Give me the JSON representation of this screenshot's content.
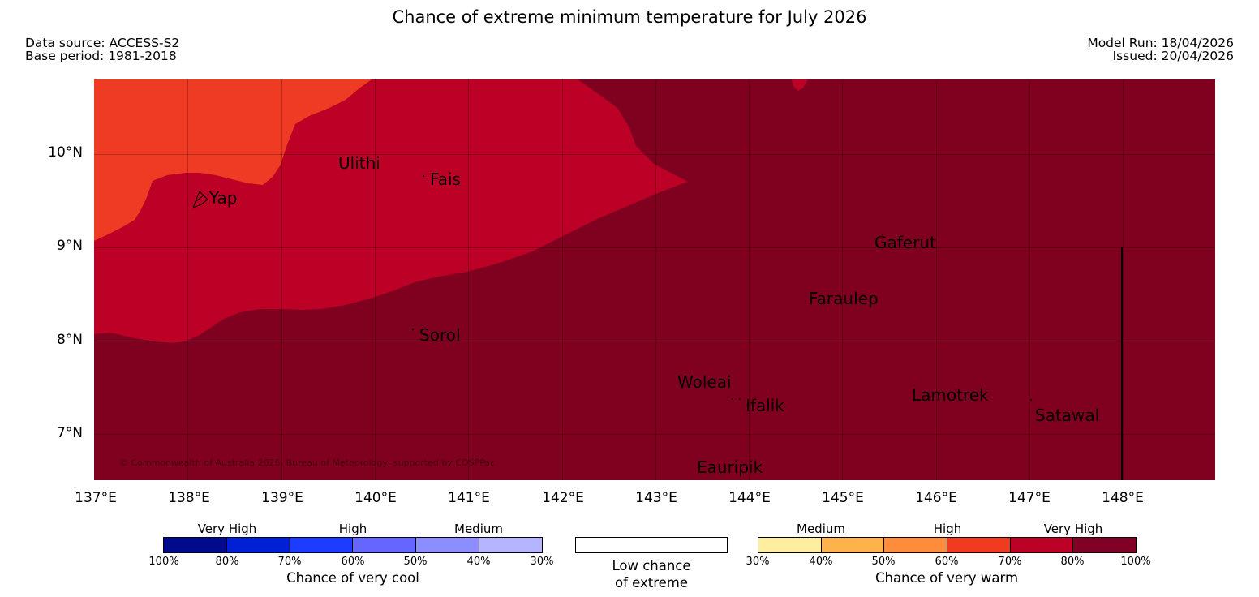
{
  "title": "Chance of extreme minimum temperature for July 2026",
  "meta": {
    "data_source": "Data source: ACCESS-S2",
    "base_period": "Base period: 1981-2018",
    "model_run": "Model Run: 18/04/2026",
    "issued": "Issued: 20/04/2026"
  },
  "map": {
    "copyright": "© Commonwealth of Australia 2026, Bureau of Meteorology, supported by COSPPac",
    "lat_labels": [
      "10°N",
      "9°N",
      "8°N",
      "7°N"
    ],
    "lon_labels": [
      "137°E",
      "138°E",
      "139°E",
      "140°E",
      "141°E",
      "142°E",
      "143°E",
      "144°E",
      "145°E",
      "146°E",
      "147°E",
      "148°E"
    ],
    "places": [
      "Yap",
      "Ulithi",
      "Fais",
      "Gaferut",
      "Faraulep",
      "Sorol",
      "Woleai",
      "Ifalik",
      "Lamotrek",
      "Satawal",
      "Eauripik"
    ],
    "colors": {
      "very_high_warm": "#800020",
      "high_warm": "#bd0026",
      "medium_high_warm": "#f03b24"
    }
  },
  "legend": {
    "cool": {
      "categories": [
        "Very High",
        "High",
        "Medium"
      ],
      "ticks": [
        "100%",
        "80%",
        "70%",
        "60%",
        "50%",
        "40%",
        "30%"
      ],
      "caption": "Chance of very cool",
      "colors": [
        "#000a8c",
        "#0020d6",
        "#1c3cff",
        "#6466ff",
        "#8c8eff",
        "#b4b4ff"
      ]
    },
    "neutral": {
      "caption_line1": "Low chance",
      "caption_line2": "of extreme"
    },
    "warm": {
      "categories": [
        "Medium",
        "High",
        "Very High"
      ],
      "ticks": [
        "30%",
        "40%",
        "50%",
        "60%",
        "70%",
        "80%",
        "100%"
      ],
      "caption": "Chance of very warm",
      "colors": [
        "#ffeda0",
        "#feb24c",
        "#fd8d3c",
        "#f03b20",
        "#bd0026",
        "#800026"
      ]
    }
  }
}
